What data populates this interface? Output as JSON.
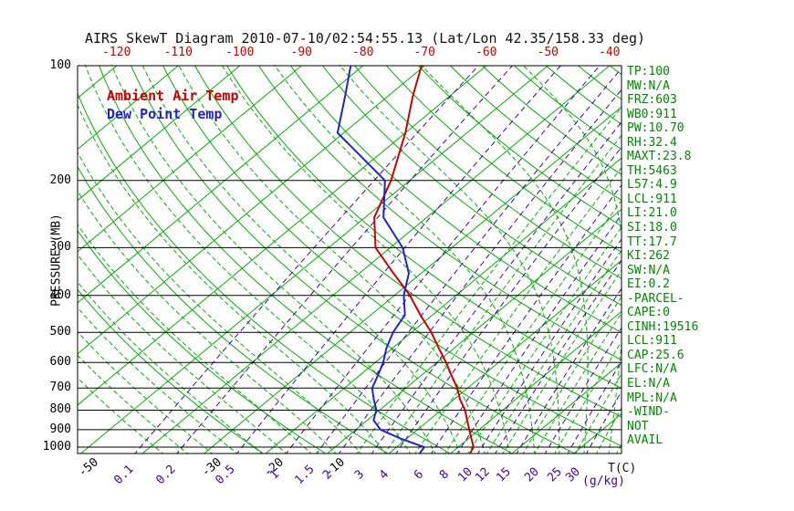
{
  "title": "AIRS SkewT Diagram 2010-07-10/02:54:55.13 (Lat/Lon 42.35/158.33 deg)",
  "legend": {
    "temp": "Ambient Air Temp",
    "dewpoint": "Dew Point Temp"
  },
  "axes": {
    "pressure_label": "PRESSURE (MB)",
    "pressure_ticks": [
      100,
      200,
      300,
      400,
      500,
      600,
      700,
      800,
      900,
      1000
    ],
    "top_temp_ticks": [
      -120,
      -110,
      -100,
      -90,
      -80,
      -70,
      -60,
      -50,
      -40
    ],
    "bottom_temp_ticks": [
      -50,
      -30,
      -20,
      -10
    ],
    "temp_unit": "T(C)",
    "mixing_unit": "(g/kg)",
    "mixing_ratio_ticks": [
      0.1,
      0.2,
      0.5,
      1,
      1.5,
      2,
      3,
      4,
      6,
      8,
      10,
      12,
      15,
      20,
      25,
      30
    ]
  },
  "stats": [
    "TP:100",
    "MW:N/A",
    "FRZ:603",
    "WB0:911",
    "PW:10.70",
    "RH:32.4",
    "MAXT:23.8",
    "TH:5463",
    "L57:4.9",
    "LCL:911",
    "LI:21.0",
    "SI:18.0",
    "TT:17.7",
    "KI:262",
    "SW:N/A",
    "EI:0.2",
    "-PARCEL-",
    "CAPE:0",
    "CINH:19516",
    "LCL:911",
    "CAP:25.6",
    "LFC:N/A",
    "EL:N/A",
    "MPL:N/A",
    "-WIND-",
    "NOT",
    "AVAIL"
  ],
  "colors": {
    "temp_curve": "#CC0000",
    "dew_curve": "#2222CC",
    "grid_green": "#00B000",
    "mixing_purple": "#4400AA",
    "stats_text": "#008800",
    "axis_black": "#000000",
    "top_axis_red": "#CC0000"
  },
  "chart_data": {
    "type": "line",
    "title": "AIRS SkewT Diagram 2010-07-10/02:54:55.13 (Lat/Lon 42.35/158.33 deg)",
    "xlabel": "T(C)",
    "ylabel": "PRESSURE (MB)",
    "y_scale": "log",
    "ylim": [
      1050,
      100
    ],
    "skew": "temperature lines skewed 45 deg up-right",
    "grid": {
      "isotherms_c": {
        "min": -120,
        "max": 40,
        "step": 10
      },
      "dry_adiabats_k": {
        "min": 250,
        "max": 450,
        "step": 10
      },
      "moist_adiabats_c": {
        "min": -36,
        "max": 36,
        "step": 4
      },
      "mixing_ratio_lines_g_kg": [
        0.1,
        0.2,
        0.5,
        1,
        1.5,
        2,
        3,
        4,
        6,
        8,
        10,
        12,
        15,
        20,
        25,
        30
      ],
      "extra_saturation_lines_g_kg": [
        2.5,
        3.5,
        5,
        7,
        9,
        11,
        13,
        16,
        18,
        22,
        27,
        33,
        40
      ]
    },
    "series": [
      {
        "name": "Ambient Air Temp",
        "color": "#CC0000",
        "points_p_t": [
          [
            1040,
            13.2
          ],
          [
            1000,
            12.5
          ],
          [
            950,
            10.5
          ],
          [
            900,
            8.4
          ],
          [
            850,
            6.2
          ],
          [
            800,
            3.9
          ],
          [
            750,
            1.0
          ],
          [
            700,
            -1.7
          ],
          [
            650,
            -5.0
          ],
          [
            600,
            -8.5
          ],
          [
            550,
            -12.5
          ],
          [
            500,
            -16.8
          ],
          [
            450,
            -22.0
          ],
          [
            400,
            -27.5
          ],
          [
            350,
            -34.5
          ],
          [
            300,
            -42.4
          ],
          [
            250,
            -48.5
          ],
          [
            200,
            -53.0
          ],
          [
            150,
            -60.0
          ],
          [
            120,
            -66.0
          ],
          [
            100,
            -70.5
          ]
        ]
      },
      {
        "name": "Dew Point Temp",
        "color": "#2222CC",
        "points_p_t": [
          [
            1040,
            5.0
          ],
          [
            1000,
            4.5
          ],
          [
            950,
            -1.0
          ],
          [
            900,
            -6.0
          ],
          [
            850,
            -9.0
          ],
          [
            800,
            -10.5
          ],
          [
            750,
            -13.0
          ],
          [
            700,
            -15.5
          ],
          [
            650,
            -17.0
          ],
          [
            600,
            -18.7
          ],
          [
            550,
            -21.0
          ],
          [
            500,
            -23.0
          ],
          [
            450,
            -24.5
          ],
          [
            400,
            -28.5
          ],
          [
            350,
            -32.0
          ],
          [
            300,
            -38.0
          ],
          [
            250,
            -47.0
          ],
          [
            200,
            -54.0
          ],
          [
            150,
            -71.0
          ],
          [
            120,
            -77.0
          ],
          [
            100,
            -82.0
          ]
        ]
      }
    ]
  }
}
